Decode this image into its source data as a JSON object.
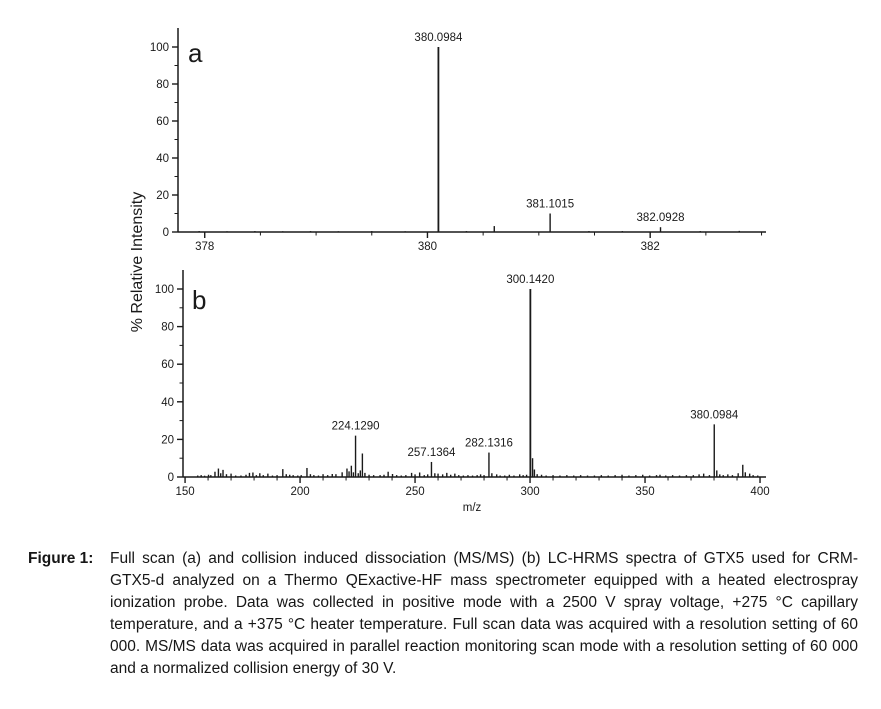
{
  "page": {
    "background": "#ffffff",
    "ink_color": "#1a1a1a"
  },
  "figure": {
    "y_axis_label": "% Relative Intensity",
    "x_axis_label": "m/z",
    "panel_a_label": "a",
    "panel_b_label": "b"
  },
  "caption": {
    "label": "Figure 1:",
    "text": "Full scan (a) and collision induced dissociation (MS/MS) (b) LC-HRMS spectra of GTX5 used for CRM-GTX5-d analyzed on a Thermo QExactive-HF mass spectrometer equipped with a heated electrospray ionization probe. Data was collected in positive mode with a 2500 V spray voltage, +275 °C capillary temperature, and a +375 °C heater temperature. Full scan data was acquired with a resolution setting of 60 000. MS/MS data was acquired in parallel reaction monitoring scan mode with a resolution setting of 60 000 and a normalized collision energy of 30 V."
  },
  "chart_data": [
    {
      "id": "panel_a",
      "type": "bar",
      "subtype": "mass-spectrum",
      "panel_label": "a",
      "title": "Full scan LC-HRMS spectrum of GTX5",
      "xlabel": "m/z",
      "ylabel": "% Relative Intensity",
      "xlim": [
        377.76,
        383.04
      ],
      "ylim": [
        0,
        100
      ],
      "x_major_ticks": [
        378,
        380,
        382
      ],
      "x_minor_step": 0.5,
      "y_major_ticks": [
        0,
        20,
        40,
        60,
        80,
        100
      ],
      "y_minor_step": 10,
      "grid": false,
      "labeled_peaks": [
        {
          "mz": 380.0984,
          "intensity": 100,
          "label": "380.0984"
        },
        {
          "mz": 381.1015,
          "intensity": 10,
          "label": "381.1015"
        },
        {
          "mz": 382.0928,
          "intensity": 2.6,
          "label": "382.0928"
        }
      ],
      "peaks": [
        [
          377.95,
          0.5
        ],
        [
          378.2,
          0.4
        ],
        [
          378.45,
          0.5
        ],
        [
          378.7,
          0.4
        ],
        [
          378.95,
          0.5
        ],
        [
          379.2,
          0.4
        ],
        [
          379.5,
          0.5
        ],
        [
          379.8,
          0.4
        ],
        [
          380.0984,
          100
        ],
        [
          380.35,
          0.5
        ],
        [
          380.6,
          3.2
        ],
        [
          381.1015,
          10
        ],
        [
          381.45,
          0.5
        ],
        [
          381.75,
          0.5
        ],
        [
          382.0928,
          2.6
        ],
        [
          382.45,
          0.5
        ],
        [
          382.8,
          0.6
        ]
      ]
    },
    {
      "id": "panel_b",
      "type": "bar",
      "subtype": "mass-spectrum",
      "panel_label": "b",
      "title": "Collision induced dissociation (MS/MS) LC-HRMS spectrum of GTX5",
      "xlabel": "m/z",
      "ylabel": "% Relative Intensity",
      "xlim": [
        149.1,
        402.6
      ],
      "ylim": [
        0,
        100
      ],
      "x_major_ticks": [
        150,
        200,
        250,
        300,
        350,
        400
      ],
      "x_minor_step": 10,
      "y_major_ticks": [
        0,
        20,
        40,
        60,
        80,
        100
      ],
      "y_minor_step": 10,
      "grid": false,
      "labeled_peaks": [
        {
          "mz": 224.129,
          "intensity": 22,
          "label": "224.1290"
        },
        {
          "mz": 257.1364,
          "intensity": 8,
          "label": "257.1364"
        },
        {
          "mz": 282.1316,
          "intensity": 13,
          "label": "282.1316"
        },
        {
          "mz": 300.142,
          "intensity": 100,
          "label": "300.1420"
        },
        {
          "mz": 380.0984,
          "intensity": 28,
          "label": "380.0984"
        }
      ],
      "peaks": [
        [
          155.5,
          0.8
        ],
        [
          157,
          1
        ],
        [
          158.5,
          0.7
        ],
        [
          160.2,
          1.2
        ],
        [
          161.2,
          1
        ],
        [
          163,
          2.8
        ],
        [
          164.5,
          4.5
        ],
        [
          165.5,
          2
        ],
        [
          166.5,
          3.8
        ],
        [
          168,
          1.5
        ],
        [
          170,
          1.8
        ],
        [
          172,
          0.8
        ],
        [
          174.3,
          0.8
        ],
        [
          176.5,
          1.2
        ],
        [
          178,
          2.2
        ],
        [
          179.5,
          2.4
        ],
        [
          181,
          1
        ],
        [
          182.5,
          2
        ],
        [
          184,
          1
        ],
        [
          186,
          1.8
        ],
        [
          188,
          0.8
        ],
        [
          190,
          1
        ],
        [
          192.5,
          4.2
        ],
        [
          194,
          1.5
        ],
        [
          195.5,
          1.2
        ],
        [
          197,
          1
        ],
        [
          199,
          0.8
        ],
        [
          200.5,
          1
        ],
        [
          203,
          4.8
        ],
        [
          204.5,
          1.5
        ],
        [
          206,
          1
        ],
        [
          208,
          0.8
        ],
        [
          210,
          1.5
        ],
        [
          212,
          1
        ],
        [
          214,
          1.6
        ],
        [
          215.6,
          1.5
        ],
        [
          218.3,
          2.5
        ],
        [
          220.4,
          4.5
        ],
        [
          221.3,
          3
        ],
        [
          222.3,
          6
        ],
        [
          223.2,
          2.5
        ],
        [
          224.129,
          22
        ],
        [
          225.3,
          2
        ],
        [
          226.2,
          3.5
        ],
        [
          227.1,
          12.5
        ],
        [
          228.2,
          2.2
        ],
        [
          230,
          1.2
        ],
        [
          232,
          1
        ],
        [
          234.8,
          1
        ],
        [
          236.5,
          1.2
        ],
        [
          238.3,
          2.8
        ],
        [
          240.2,
          1.6
        ],
        [
          242,
          1
        ],
        [
          244,
          0.8
        ],
        [
          246,
          1
        ],
        [
          248.5,
          2.2
        ],
        [
          250,
          1.4
        ],
        [
          252,
          2.4
        ],
        [
          254,
          1
        ],
        [
          255.5,
          1.4
        ],
        [
          257.1364,
          8
        ],
        [
          258.6,
          2
        ],
        [
          260,
          1.8
        ],
        [
          262,
          1.4
        ],
        [
          263.8,
          2.2
        ],
        [
          265.5,
          1.2
        ],
        [
          267.3,
          1.8
        ],
        [
          269,
          1
        ],
        [
          271,
          0.8
        ],
        [
          273,
          1
        ],
        [
          275,
          0.8
        ],
        [
          277,
          1
        ],
        [
          278.5,
          1.4
        ],
        [
          280,
          1
        ],
        [
          282.1316,
          13
        ],
        [
          283.4,
          2
        ],
        [
          285.5,
          1.4
        ],
        [
          287,
          0.8
        ],
        [
          289,
          0.8
        ],
        [
          291,
          1.2
        ],
        [
          293,
          0.8
        ],
        [
          295.5,
          1.4
        ],
        [
          297,
          1
        ],
        [
          298.5,
          1.2
        ],
        [
          300.142,
          100
        ],
        [
          301.1,
          10
        ],
        [
          301.9,
          4
        ],
        [
          303.1,
          1.5
        ],
        [
          305,
          1.2
        ],
        [
          307,
          0.8
        ],
        [
          310,
          1
        ],
        [
          313,
          0.8
        ],
        [
          316,
          1
        ],
        [
          319,
          0.8
        ],
        [
          322,
          1
        ],
        [
          325,
          0.8
        ],
        [
          328,
          0.8
        ],
        [
          331,
          1
        ],
        [
          334,
          0.8
        ],
        [
          337,
          1
        ],
        [
          340,
          1.2
        ],
        [
          343,
          0.8
        ],
        [
          346,
          1
        ],
        [
          349,
          1.2
        ],
        [
          352,
          0.8
        ],
        [
          355,
          1
        ],
        [
          356.5,
          1.2
        ],
        [
          359,
          0.8
        ],
        [
          362,
          1
        ],
        [
          365,
          0.8
        ],
        [
          368,
          1
        ],
        [
          371,
          1
        ],
        [
          373.5,
          1.4
        ],
        [
          375.5,
          1.8
        ],
        [
          378,
          1
        ],
        [
          380.0984,
          28
        ],
        [
          381.2,
          3.5
        ],
        [
          382.5,
          1.4
        ],
        [
          384,
          1
        ],
        [
          386,
          1.4
        ],
        [
          388,
          1
        ],
        [
          390.5,
          2
        ],
        [
          392.5,
          6.5
        ],
        [
          393.6,
          2.5
        ],
        [
          395.5,
          1.8
        ],
        [
          397,
          1
        ],
        [
          399,
          0.8
        ]
      ]
    }
  ]
}
